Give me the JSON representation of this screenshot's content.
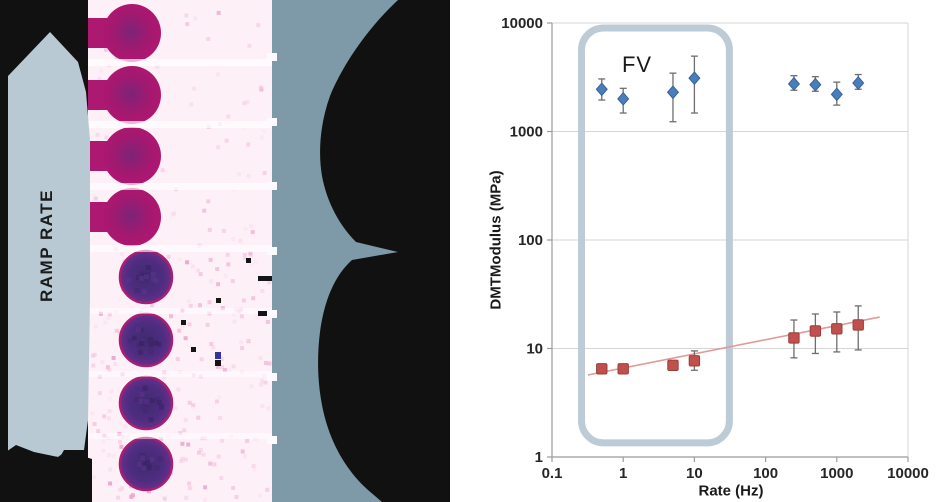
{
  "left_panel": {
    "label": "RAMP RATE",
    "colors": {
      "background": "#111111",
      "arrow_band": "#b9c9d4",
      "right_band": "#7e99a8",
      "scan_background": "#fdf0f7",
      "magenta_blob": "#b2156f",
      "purple_blob": "#4f2d82",
      "purple_rim": "#a81e72"
    },
    "rows": [
      {
        "y": 33,
        "type": "magenta"
      },
      {
        "y": 95,
        "type": "magenta"
      },
      {
        "y": 156,
        "type": "magenta"
      },
      {
        "y": 217,
        "type": "magenta"
      },
      {
        "y": 277,
        "type": "purple"
      },
      {
        "y": 340,
        "type": "purple"
      },
      {
        "y": 403,
        "type": "purple"
      },
      {
        "y": 464,
        "type": "purple"
      }
    ]
  },
  "chart_data": {
    "type": "scatter",
    "title": "",
    "xlabel": "Rate (Hz)",
    "ylabel": "DMTModulus (MPa)",
    "x_scale": "log",
    "y_scale": "log",
    "xlim": [
      0.1,
      10000
    ],
    "ylim": [
      1,
      10000
    ],
    "x_ticks": [
      "0.1",
      "1",
      "10",
      "100",
      "1000",
      "10000"
    ],
    "y_ticks": [
      "1",
      "10",
      "100",
      "1000",
      "10000"
    ],
    "grid": "horizontal",
    "legend": "none",
    "annotation": {
      "text": "FV",
      "x": 1.5,
      "y": 4000
    },
    "highlight_box": {
      "x1": 0.26,
      "x2": 31,
      "y1": 1.35,
      "y2": 9000,
      "color": "#bccbd6",
      "stroke_width": 7,
      "corner_radius": 22
    },
    "series": [
      {
        "name": "fv-modulus-blue-diamonds",
        "marker": "diamond",
        "color": "#4a7ebb",
        "edge_color": "#35629b",
        "error_color": "#6e6e6e",
        "x": [
          0.5,
          1,
          5,
          10,
          250,
          500,
          1000,
          2000
        ],
        "y": [
          2450,
          2000,
          2300,
          3100,
          2750,
          2700,
          2200,
          2800
        ],
        "y_err_low": [
          1950,
          1480,
          1230,
          1480,
          2400,
          2350,
          1750,
          2450
        ],
        "y_err_high": [
          3050,
          2500,
          3450,
          4950,
          3270,
          3200,
          2850,
          3350
        ]
      },
      {
        "name": "ramp-modulus-red-squares",
        "marker": "square",
        "color": "#c0504d",
        "edge_color": "#9c3d3a",
        "error_color": "#6e6e6e",
        "x": [
          0.5,
          1,
          5,
          10,
          250,
          500,
          1000,
          2000
        ],
        "y": [
          6.5,
          6.5,
          7.0,
          7.7,
          12.5,
          14.5,
          15.2,
          16.5
        ],
        "y_err_low": [
          null,
          null,
          null,
          6.3,
          8.2,
          9.0,
          9.3,
          9.7
        ],
        "y_err_high": [
          null,
          null,
          null,
          9.5,
          18.3,
          20.8,
          21.7,
          24.7
        ],
        "trend_line": {
          "x1": 0.32,
          "y1": 5.7,
          "x2": 4000,
          "y2": 19.5,
          "color": "#e09a98"
        }
      }
    ]
  }
}
